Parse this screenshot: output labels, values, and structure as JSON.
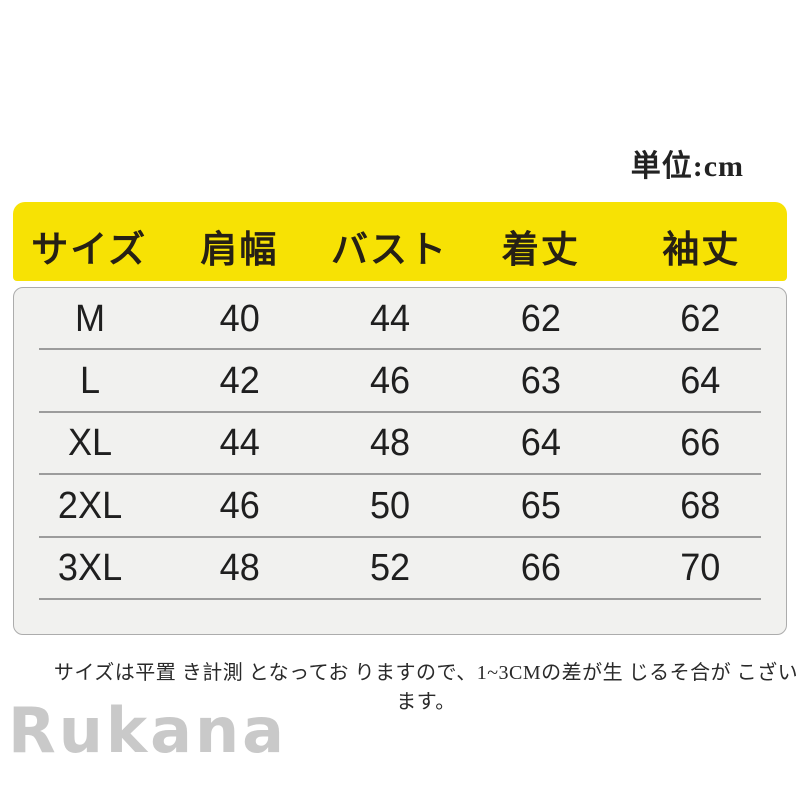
{
  "unit_label": "単位:cm",
  "size_chart": {
    "columns": [
      "サイズ",
      "肩幅",
      "バスト",
      "着丈",
      "袖丈"
    ],
    "rows": [
      {
        "size": "M",
        "shoulder": "40",
        "bust": "44",
        "length": "62",
        "sleeve": "62"
      },
      {
        "size": "L",
        "shoulder": "42",
        "bust": "46",
        "length": "63",
        "sleeve": "64"
      },
      {
        "size": "XL",
        "shoulder": "44",
        "bust": "48",
        "length": "64",
        "sleeve": "66"
      },
      {
        "size": "2XL",
        "shoulder": "46",
        "bust": "50",
        "length": "65",
        "sleeve": "68"
      },
      {
        "size": "3XL",
        "shoulder": "48",
        "bust": "52",
        "length": "66",
        "sleeve": "70"
      }
    ]
  },
  "note": "サイズは平置 き計測 となってお りますので、1~3CMの差が生 じるそ合が こざいます。",
  "watermark": "Rukana",
  "colors": {
    "header_bg": "#F7E204",
    "card_bg": "#F1F1EF",
    "card_border": "#ACACAC",
    "separator": "#9C9C9C",
    "text_dark": "#1F1F1F",
    "watermark_gray": "#C9C9C9"
  }
}
